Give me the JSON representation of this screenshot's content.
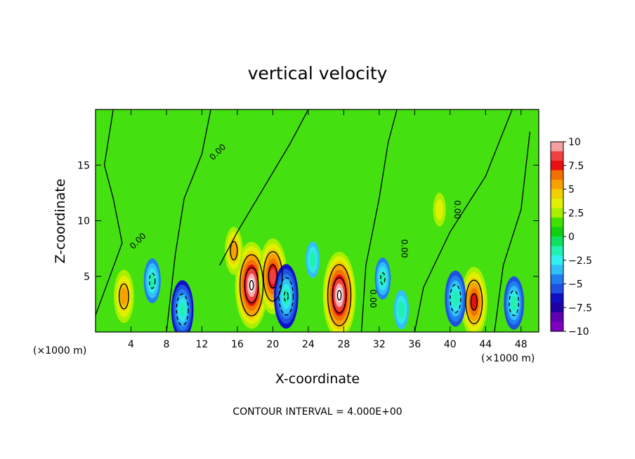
{
  "chart_data": {
    "type": "heatmap",
    "title": "vertical velocity",
    "xlabel": "X-coordinate",
    "ylabel": "Z-coordinate",
    "x_unit_label": "(×1000 m)",
    "x_unit_label_right": "(×1000 m)",
    "xlim": [
      0,
      50
    ],
    "ylim": [
      0,
      20
    ],
    "x_ticks": [
      4,
      8,
      12,
      16,
      20,
      24,
      28,
      32,
      36,
      40,
      44,
      48
    ],
    "y_ticks": [
      5,
      10,
      15
    ],
    "grid": false,
    "colorbar": {
      "ticks": [
        10,
        7.5,
        5,
        2.5,
        0,
        -2.5,
        -5,
        -7.5,
        -10
      ],
      "tick_labels": [
        "10",
        "7.5",
        "5",
        "2.5",
        "0",
        "−2.5",
        "−5",
        "−7.5",
        "−10"
      ],
      "colors_top_to_bottom": [
        "#f4a0a0",
        "#f04040",
        "#e81010",
        "#f07000",
        "#f8a000",
        "#f0d000",
        "#e0f000",
        "#a8f000",
        "#40e000",
        "#10d010",
        "#10e060",
        "#20f0b0",
        "#30f0f0",
        "#30c0f8",
        "#2080f0",
        "#2050e0",
        "#1010c0",
        "#2000a0",
        "#6000b0",
        "#8000c0"
      ],
      "range": [
        -10,
        10
      ]
    },
    "contour_interval": 4.0,
    "contour_label": "0.00",
    "contour_interval_text": "CONTOUR INTERVAL = 4.000E+00",
    "features": [
      {
        "kind": "updraft",
        "x": 3.2,
        "z": 3.2,
        "peak": 6
      },
      {
        "kind": "updraft",
        "x": 17.6,
        "z": 4.2,
        "peak": 12
      },
      {
        "kind": "updraft",
        "x": 20.0,
        "z": 5.0,
        "peak": 10
      },
      {
        "kind": "updraft",
        "x": 27.5,
        "z": 3.3,
        "peak": 12
      },
      {
        "kind": "updraft",
        "x": 42.7,
        "z": 2.7,
        "peak": 9
      },
      {
        "kind": "updraft",
        "x": 15.6,
        "z": 7.3,
        "peak": 5
      },
      {
        "kind": "updraft",
        "x": 38.8,
        "z": 11.0,
        "peak": 2.5
      },
      {
        "kind": "downdraft",
        "x": 21.5,
        "z": 3.2,
        "peak": -8
      },
      {
        "kind": "downdraft",
        "x": 9.8,
        "z": 2.0,
        "peak": -7
      },
      {
        "kind": "downdraft",
        "x": 6.4,
        "z": 4.6,
        "peak": -4.5
      },
      {
        "kind": "downdraft",
        "x": 40.6,
        "z": 3.0,
        "peak": -6.5
      },
      {
        "kind": "downdraft",
        "x": 47.2,
        "z": 2.6,
        "peak": -6
      },
      {
        "kind": "downdraft",
        "x": 32.4,
        "z": 4.8,
        "peak": -4
      },
      {
        "kind": "downdraft",
        "x": 24.5,
        "z": 6.5,
        "peak": -3
      },
      {
        "kind": "downdraft",
        "x": 34.5,
        "z": 2.0,
        "peak": -3.5
      }
    ]
  }
}
